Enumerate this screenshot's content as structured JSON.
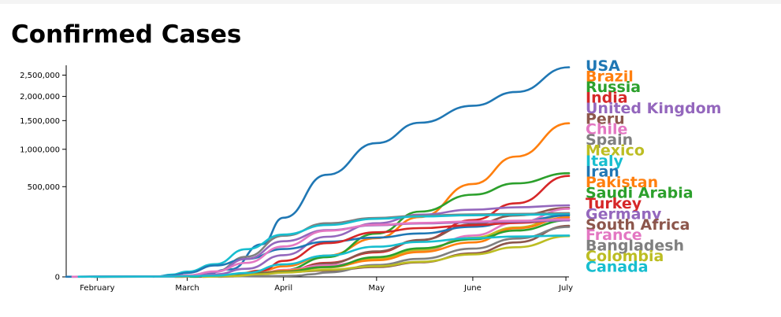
{
  "chart_data": {
    "type": "line",
    "title": "Confirmed Cases",
    "y_scale": "sqrt",
    "x_domain": [
      "2020-01-22",
      "2020-07-02"
    ],
    "ylim": [
      0,
      2750000
    ],
    "y_ticks": [
      {
        "value": 0,
        "label": "0"
      },
      {
        "value": 500000,
        "label": "500,000"
      },
      {
        "value": 1000000,
        "label": "1,000,000"
      },
      {
        "value": 1500000,
        "label": "1,500,000"
      },
      {
        "value": 2000000,
        "label": "2,000,000"
      },
      {
        "value": 2500000,
        "label": "2,500,000"
      }
    ],
    "x_ticks": [
      {
        "date": "2020-02-01",
        "label": "February"
      },
      {
        "date": "2020-03-01",
        "label": "March"
      },
      {
        "date": "2020-04-01",
        "label": "April"
      },
      {
        "date": "2020-05-01",
        "label": "May"
      },
      {
        "date": "2020-06-01",
        "label": "June"
      },
      {
        "date": "2020-07-01",
        "label": "July"
      }
    ],
    "series": [
      {
        "name": "USA",
        "color": "#1f77b4",
        "points": [
          [
            "2020-01-22",
            1
          ],
          [
            "2020-02-01",
            8
          ],
          [
            "2020-02-25",
            15
          ],
          [
            "2020-03-05",
            200
          ],
          [
            "2020-03-15",
            3500
          ],
          [
            "2020-03-25",
            65000
          ],
          [
            "2020-04-01",
            215000
          ],
          [
            "2020-04-15",
            640000
          ],
          [
            "2020-05-01",
            1100000
          ],
          [
            "2020-05-15",
            1460000
          ],
          [
            "2020-06-01",
            1800000
          ],
          [
            "2020-06-15",
            2100000
          ],
          [
            "2020-07-02",
            2700000
          ]
        ]
      },
      {
        "name": "Brazil",
        "color": "#ff7f0e",
        "points": [
          [
            "2020-02-26",
            1
          ],
          [
            "2020-03-05",
            8
          ],
          [
            "2020-03-15",
            200
          ],
          [
            "2020-03-25",
            2400
          ],
          [
            "2020-04-01",
            6800
          ],
          [
            "2020-04-15",
            28000
          ],
          [
            "2020-05-01",
            92000
          ],
          [
            "2020-05-15",
            220000
          ],
          [
            "2020-06-01",
            530000
          ],
          [
            "2020-06-15",
            890000
          ],
          [
            "2020-07-02",
            1450000
          ]
        ]
      },
      {
        "name": "Russia",
        "color": "#2ca02c",
        "points": [
          [
            "2020-01-31",
            2
          ],
          [
            "2020-03-02",
            3
          ],
          [
            "2020-03-15",
            63
          ],
          [
            "2020-03-25",
            660
          ],
          [
            "2020-04-01",
            2800
          ],
          [
            "2020-04-15",
            24000
          ],
          [
            "2020-05-01",
            115000
          ],
          [
            "2020-05-15",
            262000
          ],
          [
            "2020-06-01",
            415000
          ],
          [
            "2020-06-15",
            537000
          ],
          [
            "2020-07-02",
            660000
          ]
        ]
      },
      {
        "name": "India",
        "color": "#d62728",
        "points": [
          [
            "2020-01-30",
            1
          ],
          [
            "2020-02-03",
            3
          ],
          [
            "2020-03-02",
            5
          ],
          [
            "2020-03-10",
            60
          ],
          [
            "2020-03-25",
            600
          ],
          [
            "2020-04-01",
            1900
          ],
          [
            "2020-04-15",
            12000
          ],
          [
            "2020-05-01",
            37000
          ],
          [
            "2020-05-15",
            82000
          ],
          [
            "2020-06-01",
            198000
          ],
          [
            "2020-06-15",
            333000
          ],
          [
            "2020-07-02",
            627000
          ]
        ]
      },
      {
        "name": "United Kingdom",
        "color": "#9467bd",
        "points": [
          [
            "2020-01-31",
            2
          ],
          [
            "2020-02-10",
            8
          ],
          [
            "2020-03-01",
            36
          ],
          [
            "2020-03-10",
            380
          ],
          [
            "2020-03-20",
            4000
          ],
          [
            "2020-04-01",
            29000
          ],
          [
            "2020-04-15",
            99000
          ],
          [
            "2020-05-01",
            177000
          ],
          [
            "2020-05-15",
            238000
          ],
          [
            "2020-06-01",
            277000
          ],
          [
            "2020-06-15",
            297000
          ],
          [
            "2020-07-02",
            314000
          ]
        ]
      },
      {
        "name": "Peru",
        "color": "#8c564b",
        "points": [
          [
            "2020-03-06",
            1
          ],
          [
            "2020-03-15",
            38
          ],
          [
            "2020-03-25",
            480
          ],
          [
            "2020-04-01",
            1400
          ],
          [
            "2020-04-15",
            11000
          ],
          [
            "2020-05-01",
            40000
          ],
          [
            "2020-05-15",
            84000
          ],
          [
            "2020-06-01",
            170000
          ],
          [
            "2020-06-15",
            232000
          ],
          [
            "2020-07-02",
            292000
          ]
        ]
      },
      {
        "name": "Chile",
        "color": "#e377c2",
        "points": [
          [
            "2020-03-03",
            1
          ],
          [
            "2020-03-15",
            75
          ],
          [
            "2020-03-25",
            1100
          ],
          [
            "2020-04-01",
            3000
          ],
          [
            "2020-04-15",
            8300
          ],
          [
            "2020-05-01",
            18000
          ],
          [
            "2020-05-15",
            40000
          ],
          [
            "2020-06-01",
            105000
          ],
          [
            "2020-06-15",
            180000
          ],
          [
            "2020-07-02",
            285000
          ]
        ]
      },
      {
        "name": "Spain",
        "color": "#7f7f7f",
        "points": [
          [
            "2020-02-01",
            1
          ],
          [
            "2020-02-09",
            2
          ],
          [
            "2020-02-25",
            4
          ],
          [
            "2020-03-01",
            85
          ],
          [
            "2020-03-10",
            1700
          ],
          [
            "2020-03-20",
            25000
          ],
          [
            "2020-04-01",
            104000
          ],
          [
            "2020-04-15",
            177000
          ],
          [
            "2020-05-01",
            214000
          ],
          [
            "2020-05-15",
            230000
          ],
          [
            "2020-06-01",
            240000
          ],
          [
            "2020-06-15",
            244000
          ],
          [
            "2020-07-02",
            250000
          ]
        ]
      },
      {
        "name": "Mexico",
        "color": "#bcbd22",
        "points": [
          [
            "2020-02-28",
            1
          ],
          [
            "2020-03-01",
            5
          ],
          [
            "2020-03-15",
            41
          ],
          [
            "2020-03-25",
            480
          ],
          [
            "2020-04-01",
            1400
          ],
          [
            "2020-04-15",
            5400
          ],
          [
            "2020-05-01",
            20000
          ],
          [
            "2020-05-15",
            45000
          ],
          [
            "2020-06-01",
            94000
          ],
          [
            "2020-06-15",
            150000
          ],
          [
            "2020-07-02",
            238000
          ]
        ]
      },
      {
        "name": "Italy",
        "color": "#17becf",
        "points": [
          [
            "2020-01-31",
            2
          ],
          [
            "2020-02-20",
            3
          ],
          [
            "2020-02-25",
            320
          ],
          [
            "2020-03-01",
            1700
          ],
          [
            "2020-03-10",
            10000
          ],
          [
            "2020-03-20",
            47000
          ],
          [
            "2020-04-01",
            110000
          ],
          [
            "2020-04-15",
            165000
          ],
          [
            "2020-05-01",
            207000
          ],
          [
            "2020-05-15",
            224000
          ],
          [
            "2020-06-01",
            233000
          ],
          [
            "2020-06-15",
            237000
          ],
          [
            "2020-07-02",
            241000
          ]
        ]
      },
      {
        "name": "Iran",
        "color": "#1f77b4",
        "points": [
          [
            "2020-02-19",
            2
          ],
          [
            "2020-02-25",
            95
          ],
          [
            "2020-03-01",
            980
          ],
          [
            "2020-03-10",
            8000
          ],
          [
            "2020-03-20",
            19600
          ],
          [
            "2020-04-01",
            47600
          ],
          [
            "2020-04-15",
            76000
          ],
          [
            "2020-05-01",
            95000
          ],
          [
            "2020-05-15",
            116000
          ],
          [
            "2020-06-01",
            154000
          ],
          [
            "2020-06-15",
            189000
          ],
          [
            "2020-07-02",
            232000
          ]
        ]
      },
      {
        "name": "Pakistan",
        "color": "#ff7f0e",
        "points": [
          [
            "2020-02-26",
            2
          ],
          [
            "2020-03-05",
            5
          ],
          [
            "2020-03-15",
            53
          ],
          [
            "2020-03-25",
            1000
          ],
          [
            "2020-04-01",
            2400
          ],
          [
            "2020-04-15",
            6000
          ],
          [
            "2020-05-01",
            17000
          ],
          [
            "2020-05-15",
            38000
          ],
          [
            "2020-06-01",
            73000
          ],
          [
            "2020-06-15",
            145000
          ],
          [
            "2020-07-02",
            218000
          ]
        ]
      },
      {
        "name": "Saudi Arabia",
        "color": "#2ca02c",
        "points": [
          [
            "2020-03-02",
            1
          ],
          [
            "2020-03-10",
            15
          ],
          [
            "2020-03-25",
            900
          ],
          [
            "2020-04-01",
            1700
          ],
          [
            "2020-04-15",
            6000
          ],
          [
            "2020-05-01",
            24000
          ],
          [
            "2020-05-15",
            50000
          ],
          [
            "2020-06-01",
            87000
          ],
          [
            "2020-06-15",
            132000
          ],
          [
            "2020-07-02",
            197000
          ]
        ]
      },
      {
        "name": "Turkey",
        "color": "#d62728",
        "points": [
          [
            "2020-03-11",
            1
          ],
          [
            "2020-03-15",
            18
          ],
          [
            "2020-03-25",
            2400
          ],
          [
            "2020-04-01",
            15700
          ],
          [
            "2020-04-15",
            70000
          ],
          [
            "2020-05-01",
            122000
          ],
          [
            "2020-05-15",
            146000
          ],
          [
            "2020-06-01",
            164000
          ],
          [
            "2020-06-15",
            179000
          ],
          [
            "2020-07-02",
            202000
          ]
        ]
      },
      {
        "name": "Germany",
        "color": "#9467bd",
        "points": [
          [
            "2020-01-27",
            1
          ],
          [
            "2020-02-01",
            8
          ],
          [
            "2020-02-10",
            16
          ],
          [
            "2020-02-25",
            20
          ],
          [
            "2020-03-01",
            130
          ],
          [
            "2020-03-10",
            1500
          ],
          [
            "2020-03-20",
            19800
          ],
          [
            "2020-04-01",
            77900
          ],
          [
            "2020-04-15",
            134000
          ],
          [
            "2020-05-01",
            164000
          ],
          [
            "2020-05-15",
            175000
          ],
          [
            "2020-06-01",
            183000
          ],
          [
            "2020-06-15",
            187000
          ],
          [
            "2020-07-02",
            196000
          ]
        ]
      },
      {
        "name": "South Africa",
        "color": "#8c564b",
        "points": [
          [
            "2020-03-05",
            1
          ],
          [
            "2020-03-15",
            51
          ],
          [
            "2020-03-25",
            700
          ],
          [
            "2020-04-01",
            1400
          ],
          [
            "2020-04-15",
            2500
          ],
          [
            "2020-05-01",
            5900
          ],
          [
            "2020-05-15",
            13000
          ],
          [
            "2020-06-01",
            34000
          ],
          [
            "2020-06-15",
            73000
          ],
          [
            "2020-07-02",
            160000
          ]
        ]
      },
      {
        "name": "France",
        "color": "#e377c2",
        "points": [
          [
            "2020-01-24",
            2
          ],
          [
            "2020-01-31",
            6
          ],
          [
            "2020-02-10",
            11
          ],
          [
            "2020-02-25",
            14
          ],
          [
            "2020-03-01",
            130
          ],
          [
            "2020-03-10",
            1800
          ],
          [
            "2020-03-20",
            12000
          ],
          [
            "2020-04-01",
            57000
          ],
          [
            "2020-04-15",
            131000
          ],
          [
            "2020-05-01",
            167000
          ],
          [
            "2020-05-15",
            179000
          ],
          [
            "2020-06-01",
            189000
          ],
          [
            "2020-06-15",
            194000
          ],
          [
            "2020-07-02",
            204000
          ]
        ]
      },
      {
        "name": "Bangladesh",
        "color": "#7f7f7f",
        "points": [
          [
            "2020-03-08",
            3
          ],
          [
            "2020-03-25",
            39
          ],
          [
            "2020-04-01",
            54
          ],
          [
            "2020-04-05",
            88
          ],
          [
            "2020-04-10",
            424
          ],
          [
            "2020-04-15",
            1200
          ],
          [
            "2020-05-01",
            8800
          ],
          [
            "2020-05-15",
            20000
          ],
          [
            "2020-06-01",
            49000
          ],
          [
            "2020-06-15",
            90000
          ],
          [
            "2020-07-02",
            153000
          ]
        ]
      },
      {
        "name": "Colombia",
        "color": "#bcbd22",
        "points": [
          [
            "2020-03-06",
            1
          ],
          [
            "2020-03-15",
            34
          ],
          [
            "2020-03-25",
            470
          ],
          [
            "2020-04-01",
            1100
          ],
          [
            "2020-04-15",
            3100
          ],
          [
            "2020-05-01",
            7000
          ],
          [
            "2020-05-15",
            14000
          ],
          [
            "2020-06-01",
            31000
          ],
          [
            "2020-06-15",
            54000
          ],
          [
            "2020-07-02",
            102000
          ]
        ]
      },
      {
        "name": "Canada",
        "color": "#17becf",
        "points": [
          [
            "2020-01-26",
            1
          ],
          [
            "2020-02-01",
            4
          ],
          [
            "2020-02-25",
            11
          ],
          [
            "2020-03-01",
            24
          ],
          [
            "2020-03-10",
            80
          ],
          [
            "2020-03-20",
            1000
          ],
          [
            "2020-04-01",
            9600
          ],
          [
            "2020-04-15",
            28000
          ],
          [
            "2020-05-01",
            56000
          ],
          [
            "2020-05-15",
            75000
          ],
          [
            "2020-06-01",
            92000
          ],
          [
            "2020-06-15",
            100000
          ],
          [
            "2020-07-02",
            105000
          ]
        ]
      }
    ]
  }
}
